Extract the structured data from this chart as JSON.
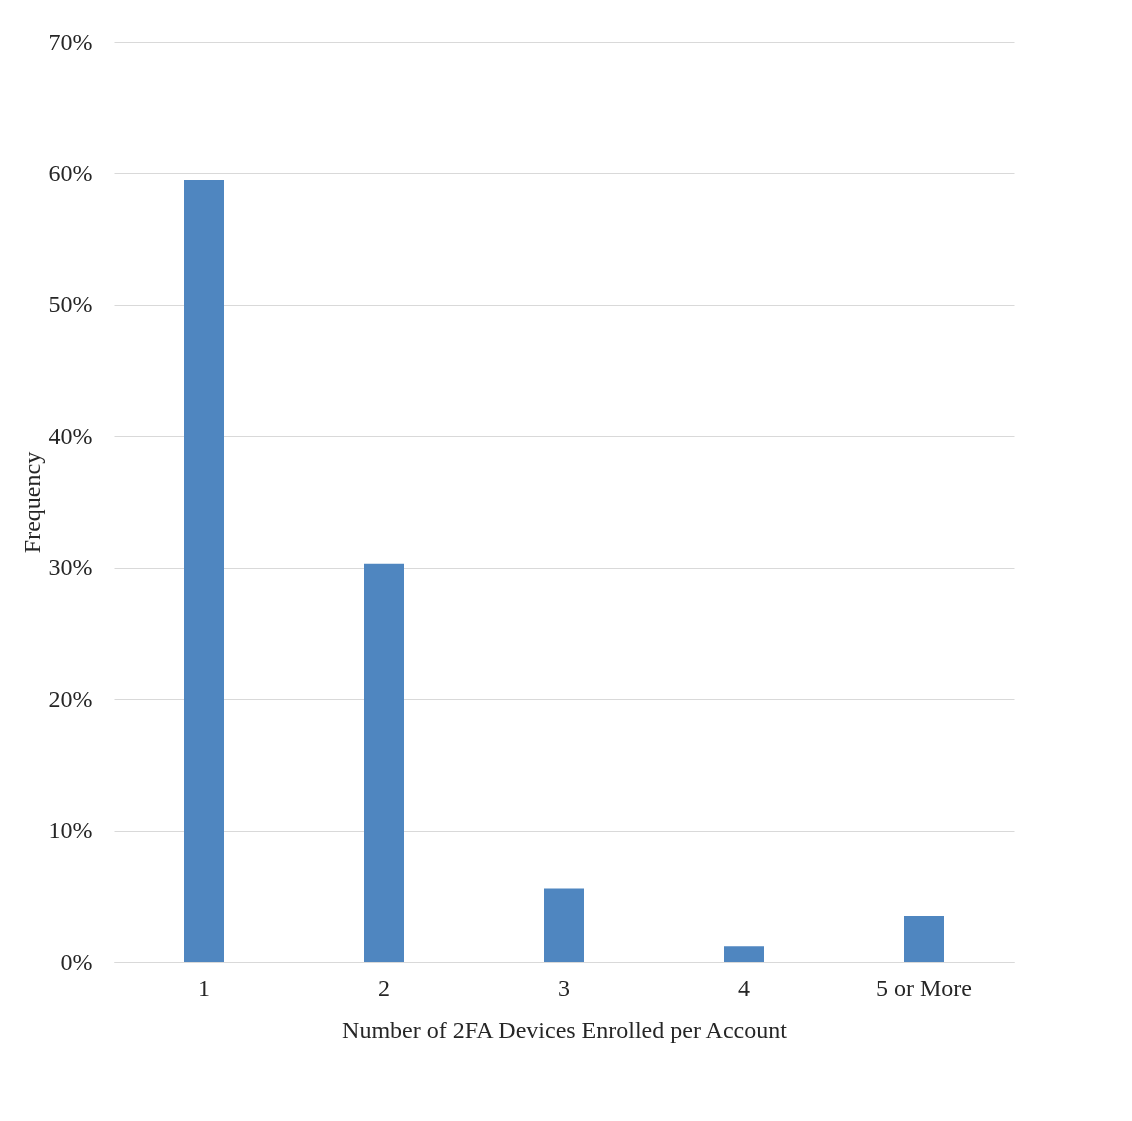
{
  "chart_data": {
    "type": "bar",
    "xlabel": "Number of 2FA Devices Enrolled per Account",
    "ylabel": "Frequency",
    "categories": [
      "1",
      "2",
      "3",
      "4",
      "5 or More"
    ],
    "values": [
      59.5,
      30.3,
      5.6,
      1.2,
      3.5
    ],
    "color": "#4f86c0",
    "ylim": [
      0,
      70
    ],
    "yticks": [
      {
        "value": 0,
        "label": "0%"
      },
      {
        "value": 10,
        "label": "10%"
      },
      {
        "value": 20,
        "label": "20%"
      },
      {
        "value": 30,
        "label": "30%"
      },
      {
        "value": 40,
        "label": "40%"
      },
      {
        "value": 50,
        "label": "50%"
      },
      {
        "value": 60,
        "label": "60%"
      },
      {
        "value": 70,
        "label": "70%"
      }
    ],
    "grid": "y"
  }
}
